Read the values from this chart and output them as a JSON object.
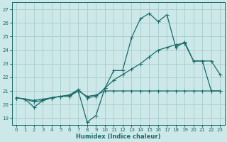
{
  "xlabel": "Humidex (Indice chaleur)",
  "xlim": [
    -0.5,
    23.5
  ],
  "ylim": [
    18.5,
    27.5
  ],
  "yticks": [
    19,
    20,
    21,
    22,
    23,
    24,
    25,
    26,
    27
  ],
  "xticks": [
    0,
    1,
    2,
    3,
    4,
    5,
    6,
    7,
    8,
    9,
    10,
    11,
    12,
    13,
    14,
    15,
    16,
    17,
    18,
    19,
    20,
    21,
    22,
    23
  ],
  "background_color": "#cde8e8",
  "grid_color": "#a8cccc",
  "line_color": "#1a6b6b",
  "line1_y": [
    20.5,
    20.4,
    19.8,
    20.3,
    20.5,
    20.6,
    20.6,
    21.0,
    18.7,
    19.2,
    21.2,
    22.5,
    22.5,
    24.9,
    26.3,
    26.7,
    26.1,
    26.6,
    24.2,
    24.6,
    23.2,
    23.2,
    23.2,
    22.2
  ],
  "line2_y": [
    20.5,
    20.4,
    20.2,
    20.3,
    20.5,
    20.6,
    20.7,
    21.1,
    20.5,
    20.6,
    21.2,
    21.8,
    22.2,
    22.6,
    23.0,
    23.5,
    24.0,
    24.2,
    24.4,
    24.5,
    23.2,
    23.2,
    21.0,
    21.0
  ],
  "line3_y": [
    20.5,
    20.4,
    20.3,
    20.4,
    20.5,
    20.6,
    20.7,
    21.0,
    20.6,
    20.7,
    21.0,
    21.0,
    21.0,
    21.0,
    21.0,
    21.0,
    21.0,
    21.0,
    21.0,
    21.0,
    21.0,
    21.0,
    21.0,
    21.0
  ]
}
